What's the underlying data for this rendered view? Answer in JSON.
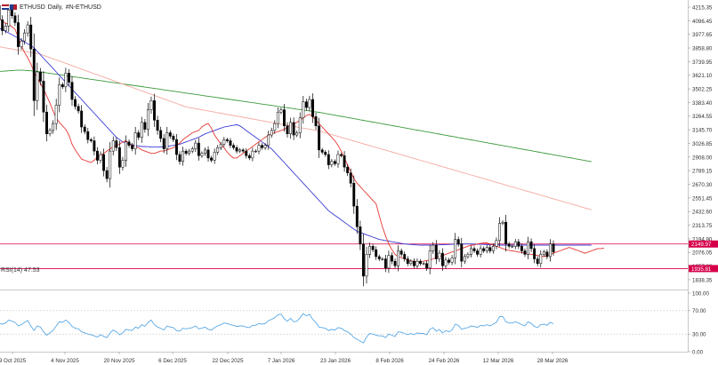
{
  "header": {
    "symbol": "ETHUSD",
    "timeframe": "Daily",
    "ticker": "#N-ETHUSD"
  },
  "colors": {
    "bull_candle": "#ffffff",
    "bear_candle": "#000000",
    "ma_fast": "#e53935",
    "ma_mid": "#3b3bd6",
    "ma_slow": "#f4a8a0",
    "ma_long": "#3a9a3a",
    "level_line": "#d6004a",
    "rsi_line": "#5aa9e6"
  },
  "chart_data": [
    {
      "type": "candlestick",
      "symbol": "ETHUSD",
      "timeframe": "Daily",
      "y_axis_ticks": [
        4215.35,
        4096.45,
        3977.65,
        3858.8,
        3739.95,
        3621.1,
        3502.25,
        3383.4,
        3264.55,
        3145.7,
        3026.85,
        2908.0,
        2789.15,
        2670.3,
        2551.45,
        2432.6,
        2313.75,
        2194.9,
        2076.05,
        1957.2,
        1838.35
      ],
      "ylim": [
        1838.35,
        4215.35
      ],
      "x_tick_labels": [
        "9 Oct 2025",
        "4 Nov 2025",
        "20 Nov 2025",
        "6 Dec 2025",
        "22 Dec 2025",
        "7 Jan 2026",
        "23 Jan 2026",
        "8 Feb 2026",
        "24 Feb 2026",
        "12 Mar 2026",
        "28 Mar 2026"
      ],
      "price_labels": [
        {
          "text": "2149.97",
          "value": 2149.97
        },
        {
          "text": "1935.81",
          "value": 1935.81
        }
      ],
      "horizontal_levels": [
        2149.97,
        1935.81
      ],
      "close_series": [
        4140,
        4230,
        4105,
        4010,
        4050,
        4190,
        4140,
        4080,
        3870,
        3920,
        3990,
        4060,
        3850,
        3400,
        3650,
        3570,
        3300,
        3110,
        3140,
        3200,
        3360,
        3540,
        3520,
        3640,
        3560,
        3410,
        3350,
        3310,
        3170,
        3130,
        3060,
        3050,
        2960,
        2880,
        2930,
        2790,
        2720,
        2960,
        3050,
        2990,
        2820,
        2880,
        3040,
        3010,
        2980,
        3120,
        3080,
        3210,
        3150,
        3320,
        3400,
        3230,
        3140,
        3070,
        2980,
        3120,
        3090,
        3060,
        2930,
        2870,
        2960,
        2940,
        2960,
        2980,
        3030,
        2920,
        2940,
        2970,
        2900,
        2880,
        2950,
        2990,
        3020,
        3060,
        3050,
        3010,
        2990,
        2960,
        2970,
        2960,
        2920,
        2900,
        2960,
        2960,
        3010,
        2990,
        3010,
        3100,
        3140,
        3200,
        3300,
        3320,
        3180,
        3110,
        3210,
        3100,
        3120,
        3250,
        3390,
        3340,
        3410,
        3260,
        3180,
        2970,
        2950,
        2930,
        2840,
        2870,
        2850,
        2930,
        2920,
        2820,
        2770,
        2680,
        2480,
        2300,
        2150,
        1870,
        2060,
        2130,
        2100,
        2040,
        2020,
        2020,
        1940,
        2050,
        2000,
        1960,
        2090,
        2060,
        2020,
        1980,
        2000,
        1960,
        2000,
        1980,
        1980,
        1940,
        2090,
        2140,
        2020,
        2070,
        1960,
        2010,
        1990,
        2030,
        2190,
        2150,
        2000,
        2040,
        2060,
        2110,
        2090,
        2060,
        2110,
        2090,
        2120,
        2090,
        2130,
        2180,
        2330,
        2340,
        2150,
        2130,
        2130,
        2170,
        2130,
        2090,
        2060,
        2170,
        2110,
        2020,
        1980,
        2060,
        2080,
        2040,
        2150,
        2080
      ],
      "ma_fast_period_unspecified": [
        4130,
        4134,
        4119,
        4094,
        4075,
        4066,
        4044,
        4022,
        3950,
        3880,
        3820,
        3774,
        3720,
        3650,
        3600,
        3550,
        3500,
        3440,
        3380,
        3310,
        3250,
        3210,
        3180,
        3150,
        3100,
        3020,
        2970,
        2930,
        2890,
        2880,
        2870,
        2860,
        2880,
        2910,
        2925,
        2940,
        2960,
        2980,
        3000,
        3010,
        3020,
        3040,
        3050,
        3030,
        3010,
        3000,
        2990,
        2970,
        2960,
        2950,
        2940,
        2940,
        2950,
        2960,
        2960,
        2970,
        2980,
        2990,
        3010,
        3030,
        3060,
        3080,
        3100,
        3120,
        3130,
        3140,
        3170,
        3190,
        3200,
        3160,
        3100,
        3060,
        3020,
        2990,
        2950,
        2920,
        2900,
        2900,
        2920,
        2940,
        2960,
        2980,
        3000,
        3020,
        3040,
        3060,
        3080,
        3100,
        3110,
        3120,
        3130,
        3140,
        3150,
        3170,
        3190,
        3200,
        3210,
        3230,
        3250,
        3270,
        3280,
        3260,
        3230,
        3200,
        3170,
        3140,
        3110,
        3080,
        3050,
        3010,
        2960,
        2900,
        2840,
        2780,
        2720,
        2680,
        2650,
        2620,
        2590,
        2560,
        2530,
        2500,
        2400,
        2300,
        2220,
        2150,
        2100,
        2060,
        2040,
        2030,
        2020,
        2010,
        2000,
        2000,
        1995,
        1995,
        2000,
        2005,
        2010,
        2020,
        2030,
        2040,
        2050,
        2060,
        2070,
        2080,
        2090,
        2100,
        2110,
        2120,
        2130,
        2140,
        2140,
        2150,
        2155,
        2160,
        2160,
        2150,
        2140,
        2130,
        2120,
        2110,
        2100,
        2095,
        2090,
        2085,
        2080,
        2075,
        2070,
        2065,
        2060,
        2055,
        2050,
        2045,
        2040,
        2050,
        2060,
        2070,
        2080,
        2090,
        2100,
        2110,
        2120,
        2110,
        2100,
        2090,
        2080,
        2070,
        2080,
        2090,
        2100,
        2110,
        2110,
        2115
      ],
      "ma_mid_period_unspecified": [
        4050,
        4040,
        4030,
        4020,
        4005,
        3990,
        3975,
        3960,
        3945,
        3930,
        3910,
        3895,
        3880,
        3860,
        3830,
        3800,
        3770,
        3740,
        3710,
        3680,
        3650,
        3620,
        3590,
        3560,
        3530,
        3500,
        3470,
        3440,
        3410,
        3380,
        3350,
        3320,
        3290,
        3260,
        3230,
        3200,
        3170,
        3140,
        3110,
        3080,
        3060,
        3040,
        3030,
        3020,
        3015,
        3010,
        3005,
        3000,
        3000,
        2998,
        2996,
        2995,
        2995,
        2996,
        2998,
        3000,
        3005,
        3010,
        3015,
        3020,
        3030,
        3040,
        3050,
        3060,
        3070,
        3080,
        3095,
        3110,
        3120,
        3130,
        3140,
        3150,
        3160,
        3170,
        3175,
        3180,
        3185,
        3190,
        3180,
        3160,
        3140,
        3120,
        3100,
        3080,
        3060,
        3040,
        3020,
        3000,
        2980,
        2950,
        2920,
        2890,
        2860,
        2830,
        2800,
        2770,
        2740,
        2710,
        2680,
        2650,
        2620,
        2590,
        2560,
        2530,
        2500,
        2470,
        2440,
        2420,
        2400,
        2380,
        2360,
        2340,
        2320,
        2300,
        2280,
        2260,
        2250,
        2240,
        2230,
        2220,
        2210,
        2200,
        2190,
        2185,
        2180,
        2175,
        2170,
        2165,
        2160,
        2155,
        2150,
        2148,
        2146,
        2144,
        2142,
        2140,
        2140,
        2140,
        2140,
        2141,
        2142,
        2143,
        2144,
        2145,
        2146,
        2147,
        2148,
        2149,
        2150,
        2150,
        2150,
        2150,
        2149,
        2148,
        2147,
        2146,
        2145,
        2144,
        2143,
        2142,
        2141,
        2140,
        2140,
        2140,
        2140,
        2140,
        2140,
        2140,
        2140,
        2140,
        2140,
        2140,
        2140,
        2140,
        2140,
        2140,
        2140,
        2140,
        2140,
        2140,
        2140,
        2140,
        2140,
        2140,
        2140,
        2140,
        2140,
        2140,
        2140,
        2140
      ],
      "ma_slow_period_unspecified": [
        3880,
        3875,
        3870,
        3865,
        3860,
        3855,
        3850,
        3845,
        3840,
        3835,
        3830,
        3825,
        3820,
        3815,
        3810,
        3805,
        3795,
        3785,
        3775,
        3765,
        3755,
        3745,
        3735,
        3725,
        3715,
        3705,
        3695,
        3685,
        3675,
        3665,
        3655,
        3645,
        3635,
        3625,
        3615,
        3605,
        3595,
        3585,
        3575,
        3565,
        3555,
        3545,
        3535,
        3525,
        3515,
        3505,
        3495,
        3485,
        3475,
        3465,
        3455,
        3445,
        3435,
        3425,
        3415,
        3405,
        3395,
        3385,
        3375,
        3365,
        3355,
        3345,
        3340,
        3335,
        3330,
        3325,
        3320,
        3315,
        3310,
        3305,
        3300,
        3295,
        3290,
        3285,
        3280,
        3275,
        3270,
        3265,
        3260,
        3255,
        3250,
        3245,
        3240,
        3235,
        3230,
        3225,
        3220,
        3215,
        3210,
        3205,
        3200,
        3195,
        3190,
        3185,
        3180,
        3175,
        3170,
        3165,
        3160,
        3155,
        3150,
        3145,
        3140,
        3135,
        3128,
        3120,
        3112,
        3104,
        3096,
        3088,
        3080,
        3072,
        3064,
        3056,
        3048,
        3040,
        3032,
        3024,
        3016,
        3008,
        3000,
        2992,
        2984,
        2976,
        2968,
        2960,
        2952,
        2944,
        2936,
        2928,
        2920,
        2912,
        2904,
        2896,
        2888,
        2880,
        2872,
        2864,
        2856,
        2848,
        2840,
        2832,
        2824,
        2816,
        2808,
        2800,
        2792,
        2784,
        2776,
        2768,
        2760,
        2752,
        2744,
        2736,
        2728,
        2720,
        2712,
        2704,
        2696,
        2688,
        2680,
        2672,
        2664,
        2656,
        2648,
        2640,
        2632,
        2624,
        2616,
        2608,
        2600,
        2592,
        2584,
        2576,
        2568,
        2560,
        2552,
        2544,
        2536,
        2528,
        2520,
        2512,
        2504,
        2496,
        2488,
        2480,
        2472,
        2464,
        2456,
        2448
      ],
      "ma_long_period_unspecified": [
        3650,
        3652,
        3654,
        3656,
        3658,
        3660,
        3662,
        3664,
        3665,
        3665,
        3664,
        3662,
        3660,
        3657,
        3654,
        3650,
        3646,
        3642,
        3638,
        3634,
        3630,
        3626,
        3622,
        3618,
        3614,
        3610,
        3606,
        3602,
        3598,
        3594,
        3590,
        3586,
        3582,
        3578,
        3574,
        3570,
        3566,
        3562,
        3558,
        3554,
        3550,
        3546,
        3542,
        3538,
        3534,
        3530,
        3526,
        3522,
        3518,
        3514,
        3510,
        3506,
        3502,
        3498,
        3494,
        3490,
        3486,
        3482,
        3478,
        3474,
        3470,
        3466,
        3462,
        3458,
        3454,
        3450,
        3446,
        3442,
        3438,
        3434,
        3430,
        3426,
        3422,
        3418,
        3414,
        3410,
        3406,
        3402,
        3398,
        3394,
        3390,
        3386,
        3382,
        3378,
        3374,
        3370,
        3366,
        3362,
        3358,
        3354,
        3350,
        3346,
        3342,
        3338,
        3334,
        3330,
        3326,
        3322,
        3318,
        3314,
        3310,
        3306,
        3302,
        3298,
        3293,
        3288,
        3283,
        3278,
        3273,
        3268,
        3263,
        3258,
        3253,
        3248,
        3243,
        3238,
        3233,
        3228,
        3223,
        3218,
        3213,
        3208,
        3203,
        3198,
        3193,
        3188,
        3183,
        3178,
        3173,
        3168,
        3163,
        3158,
        3153,
        3148,
        3143,
        3138,
        3133,
        3128,
        3123,
        3118,
        3113,
        3108,
        3103,
        3098,
        3093,
        3088,
        3083,
        3078,
        3073,
        3068,
        3063,
        3058,
        3053,
        3048,
        3043,
        3038,
        3033,
        3028,
        3023,
        3018,
        3013,
        3008,
        3003,
        2998,
        2993,
        2988,
        2983,
        2978,
        2973,
        2968,
        2963,
        2958,
        2953,
        2948,
        2943,
        2938,
        2933,
        2928,
        2923,
        2918,
        2913,
        2908,
        2903,
        2898,
        2893,
        2888,
        2883,
        2878,
        2873,
        2868
      ]
    },
    {
      "type": "line",
      "indicator": "RSI(14)",
      "label": "RSI(14) 47.53",
      "current_value": 47.53,
      "y_axis_ticks": [
        100.0,
        70.0,
        30.0,
        0.0
      ],
      "ylim": [
        0,
        100
      ],
      "reference_levels": [
        70,
        30
      ],
      "values": [
        52,
        50,
        48,
        47,
        49,
        54,
        52,
        50,
        44,
        46,
        50,
        53,
        44,
        36,
        44,
        42,
        34,
        28,
        32,
        36,
        44,
        51,
        50,
        54,
        50,
        43,
        40,
        39,
        34,
        32,
        30,
        29,
        27,
        25,
        29,
        26,
        24,
        32,
        37,
        34,
        29,
        32,
        38,
        37,
        36,
        42,
        40,
        46,
        43,
        50,
        54,
        46,
        42,
        40,
        37,
        44,
        42,
        41,
        36,
        35,
        40,
        39,
        40,
        41,
        44,
        39,
        40,
        42,
        38,
        37,
        41,
        44,
        46,
        49,
        48,
        46,
        45,
        43,
        44,
        44,
        42,
        41,
        45,
        45,
        48,
        47,
        48,
        53,
        55,
        58,
        63,
        64,
        56,
        52,
        57,
        51,
        52,
        58,
        65,
        61,
        64,
        55,
        50,
        42,
        41,
        40,
        36,
        38,
        37,
        41,
        40,
        36,
        34,
        30,
        24,
        21,
        18,
        15,
        25,
        31,
        30,
        28,
        27,
        27,
        24,
        30,
        28,
        26,
        34,
        33,
        31,
        29,
        31,
        29,
        32,
        31,
        31,
        29,
        38,
        41,
        35,
        38,
        32,
        36,
        34,
        37,
        47,
        45,
        38,
        40,
        41,
        44,
        43,
        41,
        45,
        44,
        46,
        44,
        47,
        50,
        60,
        60,
        51,
        49,
        49,
        51,
        49,
        46,
        44,
        51,
        48,
        43,
        41,
        46,
        47,
        45,
        50,
        47.53
      ]
    }
  ]
}
